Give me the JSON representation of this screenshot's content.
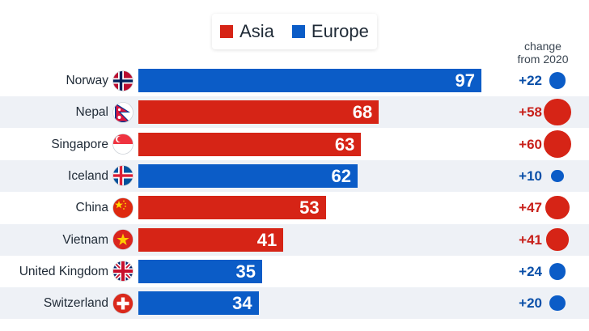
{
  "colors": {
    "Asia": "#d62416",
    "Europe": "#0b5cc7",
    "stripe": "#eef1f6"
  },
  "legend": [
    {
      "label": "Asia",
      "color": "#d62416"
    },
    {
      "label": "Europe",
      "color": "#0b5cc7"
    }
  ],
  "change_title_line1": "change",
  "change_title_line2": "from 2020",
  "chart_data": {
    "type": "bar",
    "orientation": "horizontal",
    "categories": [
      "Norway",
      "Nepal",
      "Singapore",
      "Iceland",
      "China",
      "Vietnam",
      "United Kingdom",
      "Switzerland"
    ],
    "values": [
      97,
      68,
      63,
      62,
      53,
      41,
      35,
      34
    ],
    "groups": [
      "Europe",
      "Asia",
      "Asia",
      "Europe",
      "Asia",
      "Asia",
      "Europe",
      "Europe"
    ],
    "change_from_2020": [
      22,
      58,
      60,
      10,
      47,
      41,
      24,
      20
    ],
    "change_labels": [
      "+22",
      "+58",
      "+60",
      "+10",
      "+47",
      "+41",
      "+24",
      "+20"
    ],
    "flag_icons": [
      "flag-norway-icon",
      "flag-nepal-icon",
      "flag-singapore-icon",
      "flag-iceland-icon",
      "flag-china-icon",
      "flag-vietnam-icon",
      "flag-united-kingdom-icon",
      "flag-switzerland-icon"
    ],
    "legend": [
      "Asia",
      "Europe"
    ],
    "xlim": [
      0,
      100
    ],
    "grid": false,
    "legend_position": "top-center"
  }
}
